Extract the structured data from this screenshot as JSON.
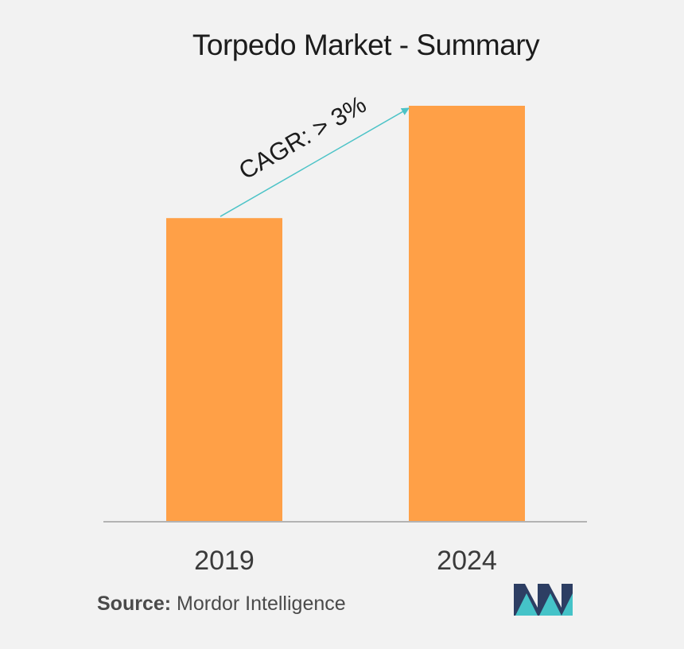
{
  "chart_data": {
    "type": "bar",
    "title": "Torpedo Market - Summary",
    "categories": [
      "2019",
      "2024"
    ],
    "values": [
      73,
      100
    ],
    "ylim": [
      0,
      100
    ],
    "xlabel": "",
    "ylabel": "",
    "grid": false,
    "annotation": "CAGR: > 3%",
    "colors": {
      "bar": "#ffa047",
      "arrow": "#4cc3c7",
      "baseline": "#b3b3b3"
    }
  },
  "source": {
    "label": "Source:",
    "value": "Mordor Intelligence"
  },
  "logo": {
    "icon": "mordor-intelligence-logo",
    "colors": [
      "#2d3e63",
      "#45c3c8"
    ]
  }
}
